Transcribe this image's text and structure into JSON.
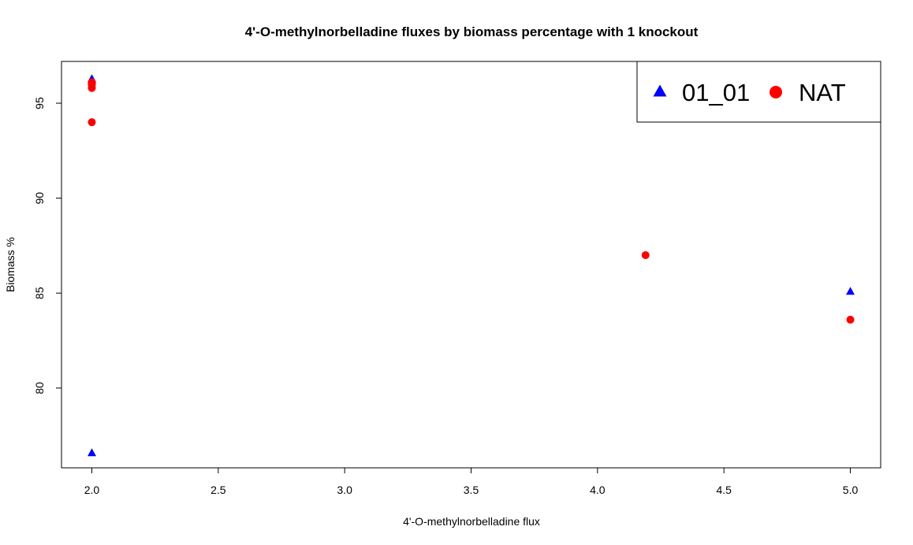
{
  "chart_data": {
    "type": "scatter",
    "title": "4'-O-methylnorbelladine fluxes by biomass percentage with 1 knockout",
    "xlabel": "4'-O-methylnorbelladine flux",
    "ylabel": "Biomass %",
    "xlim": [
      1.88,
      5.12
    ],
    "ylim": [
      75.8,
      97.2
    ],
    "xticks": [
      "2.0",
      "2.5",
      "3.0",
      "3.5",
      "4.0",
      "4.5",
      "5.0"
    ],
    "yticks": [
      "80",
      "85",
      "90",
      "95"
    ],
    "grid": false,
    "legend_position": "top-right",
    "series": [
      {
        "name": "01_01",
        "marker": "triangle",
        "color": "#0000ff",
        "points": [
          [
            2.0,
            96.3
          ],
          [
            2.0,
            96.2
          ],
          [
            2.0,
            76.6
          ],
          [
            5.0,
            85.1
          ]
        ]
      },
      {
        "name": "NAT",
        "marker": "circle",
        "color": "#ff0000",
        "points": [
          [
            2.0,
            96.1
          ],
          [
            2.0,
            95.95
          ],
          [
            2.0,
            95.8
          ],
          [
            2.0,
            94.0
          ],
          [
            4.19,
            87.0
          ],
          [
            5.0,
            83.6
          ]
        ]
      }
    ]
  }
}
